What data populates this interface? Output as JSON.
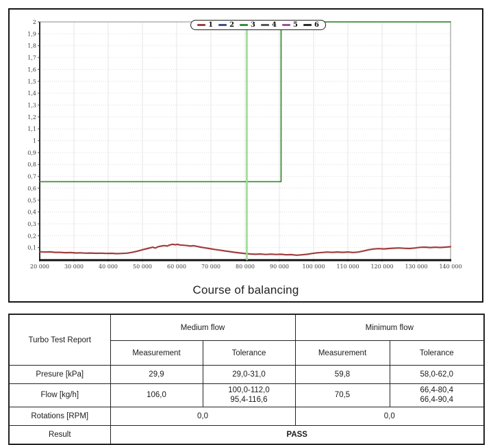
{
  "chart_data": {
    "type": "line",
    "title": "Course of balancing",
    "x_range": [
      20000,
      140000
    ],
    "x_tick_step": 10000,
    "x_tick_labels": [
      "20 000",
      "30 000",
      "40 000",
      "50 000",
      "60 000",
      "70 000",
      "80 000",
      "90 000",
      "100 000",
      "110 000",
      "120 000",
      "130 000",
      "140 000"
    ],
    "y_range": [
      0,
      2
    ],
    "y_tick_step": 0.1,
    "y_tick_labels": [
      "0,1",
      "0,2",
      "0,3",
      "0,4",
      "0,5",
      "0,6",
      "0,7",
      "0,8",
      "0,9",
      "1",
      "1,1",
      "1,2",
      "1,3",
      "1,4",
      "1,5",
      "1,6",
      "1,7",
      "1,8",
      "1,9",
      "2"
    ],
    "grid": true,
    "legend": {
      "position": "top-center",
      "entries": [
        {
          "label": "1",
          "color": "#a03c3c"
        },
        {
          "label": "2",
          "color": "#3c4f8c"
        },
        {
          "label": "3",
          "color": "#3c8c3c"
        },
        {
          "label": "4",
          "color": "#555555"
        },
        {
          "label": "5",
          "color": "#9c4f9c"
        },
        {
          "label": "6",
          "color": "#2a2a2a"
        }
      ]
    },
    "series": [
      {
        "name": "1",
        "role": "measured-imbalance",
        "color": "#a03c3c",
        "width": 2.2,
        "points": [
          [
            20000,
            0.065
          ],
          [
            21500,
            0.062
          ],
          [
            23000,
            0.064
          ],
          [
            24500,
            0.06
          ],
          [
            26000,
            0.06
          ],
          [
            27500,
            0.057
          ],
          [
            29000,
            0.058
          ],
          [
            30500,
            0.055
          ],
          [
            32000,
            0.056
          ],
          [
            33500,
            0.053
          ],
          [
            35000,
            0.054
          ],
          [
            36500,
            0.052
          ],
          [
            38000,
            0.053
          ],
          [
            39500,
            0.051
          ],
          [
            41000,
            0.052
          ],
          [
            42500,
            0.049
          ],
          [
            44000,
            0.051
          ],
          [
            45500,
            0.053
          ],
          [
            47000,
            0.06
          ],
          [
            48500,
            0.07
          ],
          [
            50000,
            0.082
          ],
          [
            51500,
            0.092
          ],
          [
            53000,
            0.103
          ],
          [
            53800,
            0.096
          ],
          [
            54600,
            0.108
          ],
          [
            55500,
            0.113
          ],
          [
            56500,
            0.117
          ],
          [
            57200,
            0.113
          ],
          [
            58000,
            0.122
          ],
          [
            58800,
            0.128
          ],
          [
            59500,
            0.124
          ],
          [
            60300,
            0.127
          ],
          [
            61000,
            0.122
          ],
          [
            62000,
            0.12
          ],
          [
            63000,
            0.117
          ],
          [
            64000,
            0.113
          ],
          [
            65000,
            0.116
          ],
          [
            66000,
            0.11
          ],
          [
            67000,
            0.104
          ],
          [
            68000,
            0.099
          ],
          [
            69500,
            0.092
          ],
          [
            71000,
            0.085
          ],
          [
            72500,
            0.079
          ],
          [
            74000,
            0.072
          ],
          [
            75500,
            0.066
          ],
          [
            77000,
            0.06
          ],
          [
            78500,
            0.055
          ],
          [
            80000,
            0.05
          ],
          [
            81500,
            0.046
          ],
          [
            83000,
            0.044
          ],
          [
            84500,
            0.046
          ],
          [
            86000,
            0.042
          ],
          [
            87500,
            0.045
          ],
          [
            89000,
            0.042
          ],
          [
            90500,
            0.044
          ],
          [
            92000,
            0.039
          ],
          [
            93500,
            0.041
          ],
          [
            95000,
            0.036
          ],
          [
            96500,
            0.039
          ],
          [
            98000,
            0.043
          ],
          [
            99500,
            0.05
          ],
          [
            101000,
            0.056
          ],
          [
            102500,
            0.059
          ],
          [
            104000,
            0.062
          ],
          [
            105500,
            0.06
          ],
          [
            107000,
            0.063
          ],
          [
            108500,
            0.06
          ],
          [
            110000,
            0.063
          ],
          [
            111500,
            0.059
          ],
          [
            113000,
            0.062
          ],
          [
            114500,
            0.071
          ],
          [
            116000,
            0.081
          ],
          [
            117500,
            0.088
          ],
          [
            119000,
            0.091
          ],
          [
            120500,
            0.089
          ],
          [
            122000,
            0.092
          ],
          [
            123500,
            0.095
          ],
          [
            125000,
            0.097
          ],
          [
            126500,
            0.094
          ],
          [
            128000,
            0.092
          ],
          [
            129500,
            0.096
          ],
          [
            131000,
            0.102
          ],
          [
            132500,
            0.104
          ],
          [
            134000,
            0.1
          ],
          [
            135500,
            0.103
          ],
          [
            137000,
            0.101
          ],
          [
            138500,
            0.104
          ],
          [
            140000,
            0.107
          ]
        ]
      },
      {
        "name": "3",
        "role": "tolerance-limit-step",
        "color": "#3c8c3c",
        "width": 1.8,
        "points": [
          [
            20000,
            0.655
          ],
          [
            90500,
            0.655
          ],
          [
            90500,
            2
          ],
          [
            140000,
            2
          ]
        ]
      },
      {
        "name": "marker",
        "role": "position-marker",
        "color": "#98dc90",
        "width": 2.5,
        "points": [
          [
            80500,
            0
          ],
          [
            80500,
            2
          ]
        ]
      }
    ]
  },
  "table": {
    "corner_label": "Turbo Test Report",
    "group_headers": [
      "Medium flow",
      "Minimum flow"
    ],
    "sub_headers": [
      "Measurement",
      "Tolerance",
      "Measurement",
      "Tolerance"
    ],
    "rows": [
      {
        "label": "Presure [kPa]",
        "cells": [
          "29,9",
          "29,0-31,0",
          "59,8",
          "58,0-62,0"
        ]
      },
      {
        "label": "Flow [kg/h]",
        "cells": [
          "106,0",
          "100,0-112,0\n95,4-116,6",
          "70,5",
          "66,4-80,4\n66,4-90,4"
        ]
      },
      {
        "label": "Rotations [RPM]",
        "cells_merged": [
          "0,0",
          "0,0"
        ]
      },
      {
        "label": "Result",
        "cell_full": "PASS"
      }
    ]
  }
}
